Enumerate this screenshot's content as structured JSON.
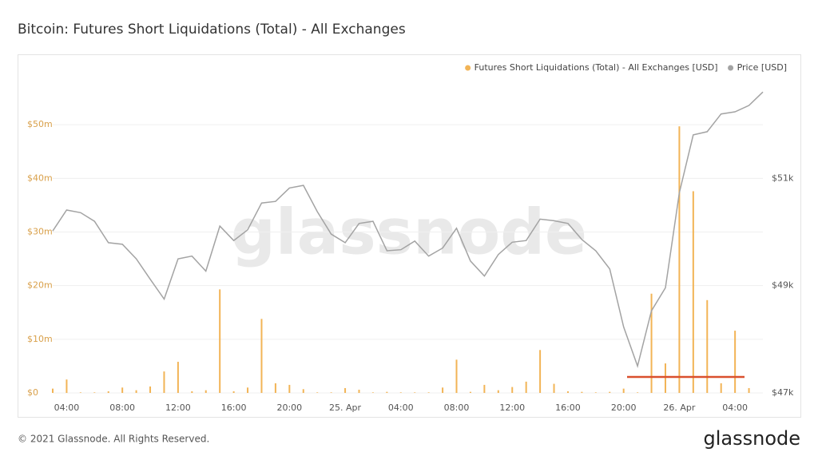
{
  "chart_data": {
    "type": "bar",
    "title": "Bitcoin: Futures Short Liquidations (Total) - All Exchanges",
    "watermark": "glassnode",
    "categories": [
      null,
      "04:00",
      null,
      null,
      null,
      "08:00",
      null,
      null,
      null,
      "12:00",
      null,
      null,
      null,
      "16:00",
      null,
      null,
      null,
      "20:00",
      null,
      null,
      null,
      "25. Apr",
      null,
      null,
      null,
      "04:00",
      null,
      null,
      null,
      "08:00",
      null,
      null,
      null,
      "12:00",
      null,
      null,
      null,
      "16:00",
      null,
      null,
      null,
      "20:00",
      null,
      null,
      null,
      "26. Apr",
      null,
      null,
      null,
      "04:00",
      null,
      null
    ],
    "series": [
      {
        "name": "Futures Short Liquidations (Total) - All Exchanges [USD]",
        "type": "bar",
        "color": "#f2b456",
        "values": [
          0.8,
          2.5,
          0.1,
          0.1,
          0.3,
          1.0,
          0.5,
          1.2,
          4.0,
          5.8,
          0.3,
          0.5,
          19.3,
          0.3,
          1.0,
          13.8,
          1.8,
          1.5,
          0.7,
          0.1,
          0.1,
          0.9,
          0.6,
          0.1,
          0.2,
          0.1,
          0.1,
          0.1,
          1.0,
          6.2,
          0.2,
          1.5,
          0.5,
          1.1,
          2.1,
          8.0,
          1.7,
          0.3,
          0.2,
          0.1,
          0.2,
          0.8,
          0.1,
          18.5,
          5.5,
          49.7,
          37.6,
          17.3,
          1.8,
          11.6,
          0.9,
          0
        ]
      },
      {
        "name": "Price [USD]",
        "type": "line",
        "axis": "y2",
        "color": "#a3a3a3",
        "values": [
          50.02,
          50.41,
          50.36,
          50.2,
          49.8,
          49.77,
          49.5,
          49.12,
          48.75,
          49.5,
          49.55,
          49.27,
          50.11,
          49.84,
          50.04,
          50.54,
          50.57,
          50.82,
          50.87,
          50.38,
          49.96,
          49.8,
          50.16,
          50.2,
          49.65,
          49.67,
          49.83,
          49.55,
          49.7,
          50.07,
          49.46,
          49.18,
          49.58,
          49.81,
          49.84,
          50.24,
          50.21,
          50.16,
          49.86,
          49.65,
          49.31,
          48.23,
          47.5,
          48.53,
          48.96,
          50.73,
          51.81,
          51.87,
          52.2,
          52.24,
          52.36,
          52.61
        ]
      }
    ],
    "ylim": [
      0,
      60
    ],
    "yticks": [
      {
        "value": 0,
        "label": "$0"
      },
      {
        "value": 10,
        "label": "$10m"
      },
      {
        "value": 20,
        "label": "$20m"
      },
      {
        "value": 30,
        "label": "$30m"
      },
      {
        "value": 40,
        "label": "$40m"
      },
      {
        "value": 50,
        "label": "$50m"
      }
    ],
    "y2lim": [
      47,
      53
    ],
    "y2ticks": [
      {
        "value": 47,
        "label": "$47k"
      },
      {
        "value": 49,
        "label": "$49k"
      },
      {
        "value": 51,
        "label": "$51k"
      }
    ],
    "grid": true,
    "legend": "top-right"
  },
  "footer": {
    "copyright": "© 2021 Glassnode. All Rights Reserved.",
    "logo": "glassnode"
  }
}
